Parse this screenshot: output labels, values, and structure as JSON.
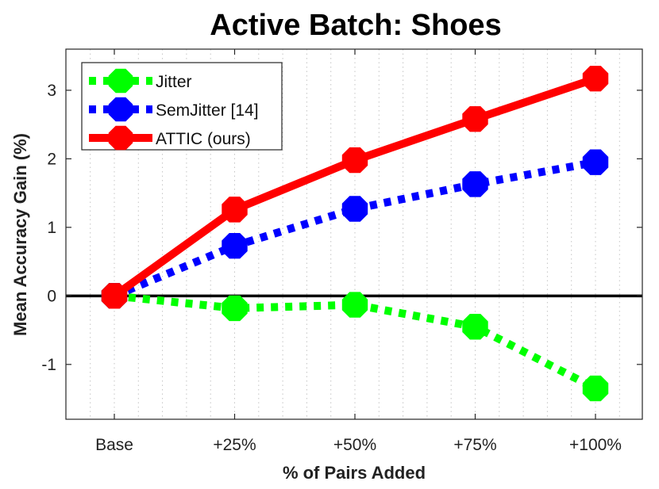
{
  "chart_data": {
    "type": "line",
    "title": "Active Batch: Shoes",
    "xlabel": "% of Pairs Added",
    "ylabel": "Mean Accuracy Gain (%)",
    "categories": [
      "Base",
      "+25%",
      "+50%",
      "+75%",
      "+100%"
    ],
    "ylim": [
      -1.8,
      3.6
    ],
    "yticks": [
      -1,
      0,
      1,
      2,
      3
    ],
    "ytick_labels": [
      "-1",
      "0",
      "1",
      "2",
      "3"
    ],
    "legend_position": "top-left",
    "series": [
      {
        "name": "Jitter",
        "color": "#00ff00",
        "style": "dotted",
        "values": [
          0.0,
          -0.18,
          -0.13,
          -0.45,
          -1.35
        ]
      },
      {
        "name": "SemJitter [14]",
        "color": "#0000ff",
        "style": "dotted",
        "values": [
          0.0,
          0.73,
          1.27,
          1.63,
          1.95
        ]
      },
      {
        "name": "ATTIC (ours)",
        "color": "#ff0000",
        "style": "solid",
        "values": [
          0.0,
          1.26,
          1.98,
          2.58,
          3.17
        ]
      }
    ]
  }
}
